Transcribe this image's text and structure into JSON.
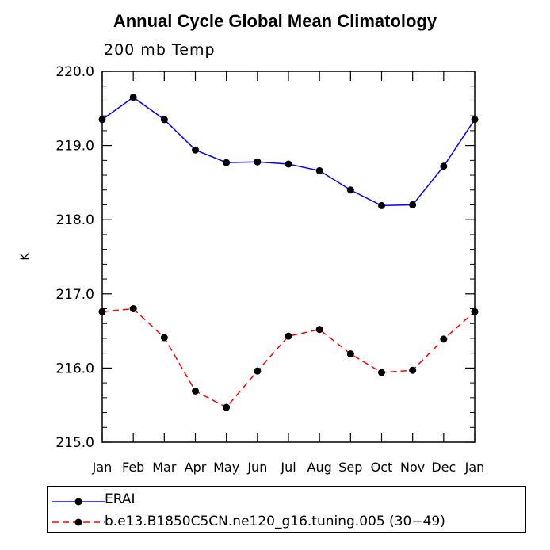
{
  "chart_data": {
    "type": "line",
    "title": "Annual Cycle Global Mean Climatology",
    "subtitle": "200 mb Temp",
    "xlabel": "",
    "ylabel": "K",
    "categories": [
      "Jan",
      "Feb",
      "Mar",
      "Apr",
      "May",
      "Jun",
      "Jul",
      "Aug",
      "Sep",
      "Oct",
      "Nov",
      "Dec",
      "Jan"
    ],
    "ylim": [
      215.0,
      220.0
    ],
    "yticks": [
      "215.0",
      "216.0",
      "217.0",
      "218.0",
      "219.0",
      "220.0"
    ],
    "grid": false,
    "legend_position": "bottom",
    "series": [
      {
        "name": "ERAI",
        "color": "#0000ff",
        "line_style": "solid",
        "marker": "filled-circle",
        "values": [
          219.35,
          219.65,
          219.35,
          218.94,
          218.77,
          218.78,
          218.75,
          218.66,
          218.4,
          218.19,
          218.2,
          218.72,
          219.35
        ]
      },
      {
        "name": "b.e13.B1850C5CN.ne120_g16.tuning.005 (30−49)",
        "color": "#ff0000",
        "line_style": "dashed",
        "marker": "filled-circle",
        "values": [
          216.76,
          216.8,
          216.41,
          215.69,
          215.47,
          215.96,
          216.43,
          216.52,
          216.19,
          215.94,
          215.97,
          216.39,
          216.76
        ]
      }
    ]
  }
}
